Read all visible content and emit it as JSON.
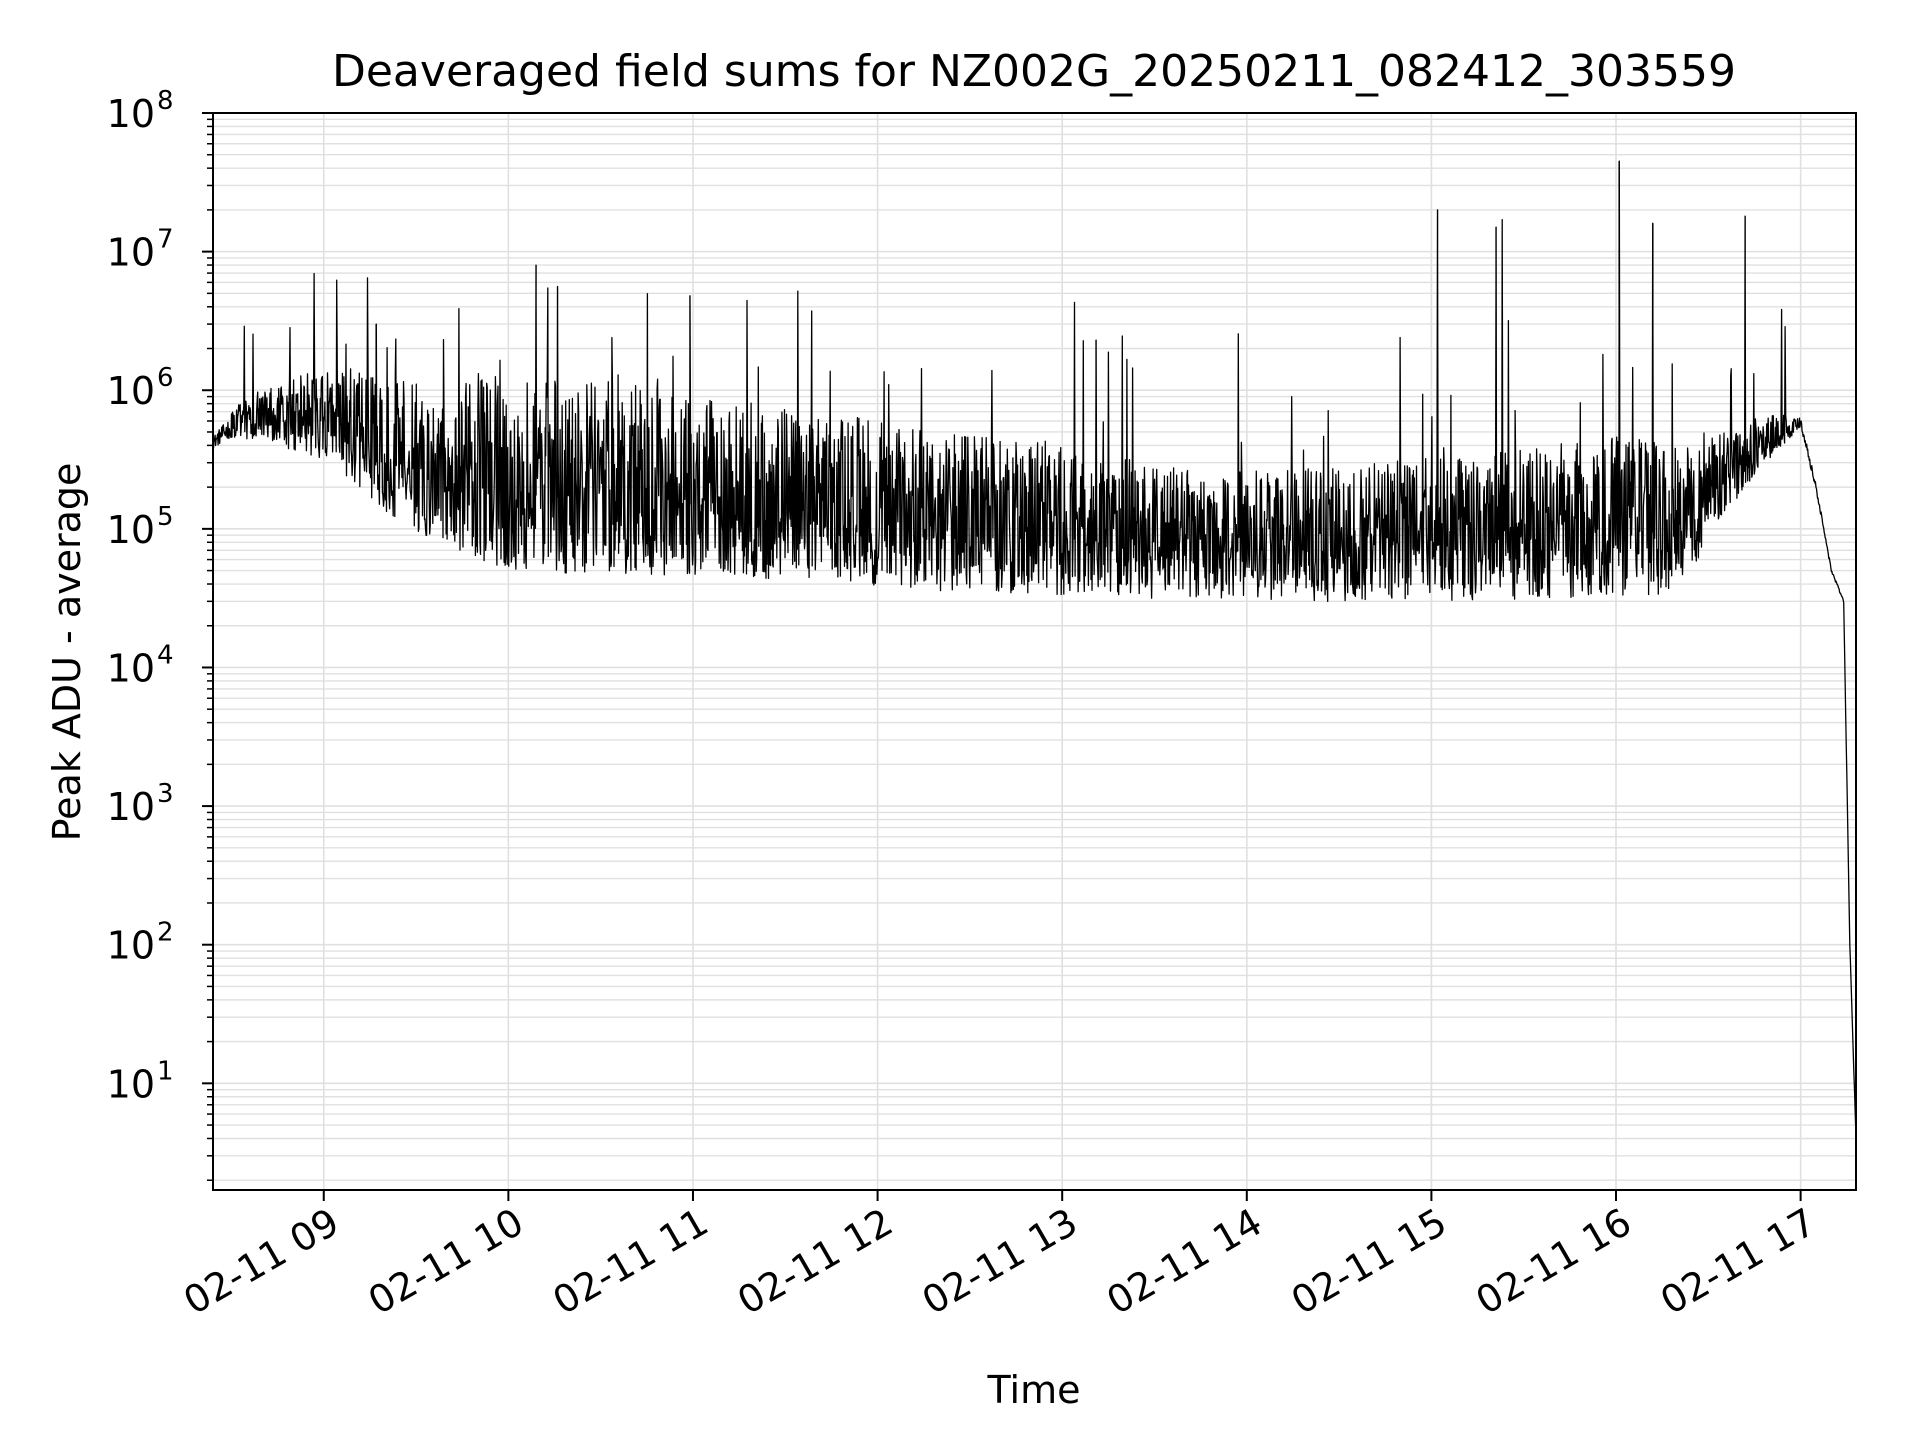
{
  "chart_data": {
    "type": "line",
    "title": "Deaveraged field sums for NZ002G_20250211_082412_303559",
    "xlabel": "Time",
    "ylabel": "Peak ADU - average",
    "x_range": [
      "02-11 08:24",
      "02-11 17:18"
    ],
    "x_ticks": [
      "02-11 09",
      "02-11 10",
      "02-11 11",
      "02-11 12",
      "02-11 13",
      "02-11 14",
      "02-11 15",
      "02-11 16",
      "02-11 17"
    ],
    "y_scale": "log",
    "ylim": [
      1.7,
      100000000
    ],
    "y_ticks": [
      {
        "base": "10",
        "exp": "1"
      },
      {
        "base": "10",
        "exp": "2"
      },
      {
        "base": "10",
        "exp": "3"
      },
      {
        "base": "10",
        "exp": "4"
      },
      {
        "base": "10",
        "exp": "5"
      },
      {
        "base": "10",
        "exp": "6"
      },
      {
        "base": "10",
        "exp": "7"
      },
      {
        "base": "10",
        "exp": "8"
      }
    ],
    "grid": true,
    "line_color": "#000000",
    "grid_color": "#e0e0e0",
    "series": [
      {
        "x": [
          "02-11 08:24",
          "02-11 08:30",
          "02-11 08:40",
          "02-11 08:50",
          "02-11 09:00",
          "02-11 09:10",
          "02-11 09:20",
          "02-11 09:30",
          "02-11 09:40",
          "02-11 09:50",
          "02-11 10:00",
          "02-11 10:15",
          "02-11 10:30",
          "02-11 10:45",
          "02-11 11:00",
          "02-11 11:15",
          "02-11 11:30",
          "02-11 11:45",
          "02-11 12:00",
          "02-11 12:15",
          "02-11 12:30",
          "02-11 12:45",
          "02-11 13:00",
          "02-11 13:15",
          "02-11 13:30",
          "02-11 13:45",
          "02-11 14:00",
          "02-11 14:15",
          "02-11 14:30",
          "02-11 14:45",
          "02-11 15:00",
          "02-11 15:15",
          "02-11 15:30",
          "02-11 15:45",
          "02-11 16:00",
          "02-11 16:15",
          "02-11 16:25",
          "02-11 16:35",
          "02-11 16:45",
          "02-11 16:55",
          "02-11 17:00",
          "02-11 17:05",
          "02-11 17:10",
          "02-11 17:14",
          "02-11 17:16",
          "02-11 17:18"
        ],
        "y": [
          420000,
          550000,
          600000,
          580000,
          550000,
          450000,
          300000,
          250000,
          220000,
          200000,
          180000,
          170000,
          160000,
          150000,
          150000,
          140000,
          130000,
          120000,
          110000,
          100000,
          95000,
          90000,
          85000,
          80000,
          75000,
          72000,
          70000,
          70000,
          70000,
          72000,
          75000,
          78000,
          80000,
          85000,
          90000,
          95000,
          110000,
          200000,
          350000,
          500000,
          600000,
          200000,
          50000,
          30000,
          100,
          4
        ],
        "spikes": [
          {
            "x": "02-11 09:17",
            "y": 3000000
          },
          {
            "x": "02-11 10:09",
            "y": 8000000
          },
          {
            "x": "02-11 10:16",
            "y": 5600000
          },
          {
            "x": "02-11 10:59",
            "y": 4800000
          },
          {
            "x": "02-11 13:04",
            "y": 4300000
          },
          {
            "x": "02-11 13:11",
            "y": 2300000
          },
          {
            "x": "02-11 15:02",
            "y": 20000000
          },
          {
            "x": "02-11 15:21",
            "y": 15000000
          },
          {
            "x": "02-11 15:23",
            "y": 17000000
          },
          {
            "x": "02-11 16:01",
            "y": 45000000
          },
          {
            "x": "02-11 16:12",
            "y": 16000000
          },
          {
            "x": "02-11 16:42",
            "y": 18000000
          }
        ]
      }
    ]
  }
}
